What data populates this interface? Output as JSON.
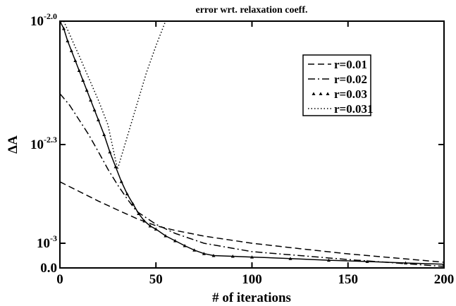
{
  "chart_data": {
    "type": "line",
    "title": "error wrt. relaxation coeff.",
    "x_label": "# of iterations",
    "y_label": "ΔA",
    "xlim": [
      0,
      200
    ],
    "xticks": [
      0,
      50,
      100,
      150,
      200
    ],
    "ylim": [
      0,
      0.01
    ],
    "yticks": [
      {
        "value": 0,
        "label": "0.0"
      },
      {
        "value": 0.001,
        "label": "10",
        "sup": "-3"
      },
      {
        "value": 0.005,
        "label": "10",
        "sup": "-2.3"
      },
      {
        "value": 0.01,
        "label": "10",
        "sup": "-2.0"
      }
    ],
    "legend": "upper right",
    "series": [
      {
        "name": "r=0.01",
        "color": "#000000",
        "style": "dashed",
        "x": [
          0,
          10,
          20,
          30,
          40,
          50,
          60,
          75,
          100,
          125,
          150,
          175,
          200
        ],
        "values": [
          0.00349,
          0.0031,
          0.00271,
          0.00235,
          0.002,
          0.00171,
          0.00152,
          0.00129,
          0.001,
          0.00078,
          0.00057,
          0.0004,
          0.00023
        ]
      },
      {
        "name": "r=0.02",
        "color": "#000000",
        "style": "dashdot",
        "x": [
          0,
          5,
          10,
          15,
          20,
          25,
          30,
          35,
          40,
          50,
          60,
          75,
          100,
          125,
          150,
          175,
          200
        ],
        "values": [
          0.00706,
          0.0066,
          0.006,
          0.0054,
          0.00471,
          0.004,
          0.00337,
          0.0028,
          0.00229,
          0.00177,
          0.0014,
          0.001,
          0.00066,
          0.0005,
          0.00034,
          0.0002,
          6e-05
        ]
      },
      {
        "name": "r=0.03",
        "color": "#000000",
        "style": "triangles",
        "x": [
          0,
          2,
          4,
          6,
          8,
          10,
          12,
          14,
          16,
          18,
          20,
          23,
          26,
          29,
          32,
          35,
          38,
          41,
          44,
          47,
          50,
          55,
          60,
          65,
          70,
          75,
          80,
          90,
          100,
          120,
          140,
          160,
          180,
          200
        ],
        "values": [
          0.01,
          0.0097,
          0.0092,
          0.0088,
          0.0084,
          0.008,
          0.0076,
          0.0072,
          0.0068,
          0.0064,
          0.006,
          0.0054,
          0.0047,
          0.0041,
          0.0035,
          0.003,
          0.0026,
          0.0022,
          0.0019,
          0.0017,
          0.00157,
          0.0013,
          0.0011,
          0.0009,
          0.00072,
          0.00058,
          0.0005,
          0.00047,
          0.00044,
          0.00038,
          0.00031,
          0.00026,
          0.0002,
          0.00015
        ]
      },
      {
        "name": "r=0.031",
        "color": "#000000",
        "style": "dotted",
        "x": [
          2,
          10,
          20,
          25,
          30,
          35,
          40,
          45,
          50,
          55
        ],
        "values": [
          0.01,
          0.0086,
          0.0068,
          0.0058,
          0.004,
          0.0053,
          0.0066,
          0.0079,
          0.009,
          0.01
        ]
      }
    ]
  }
}
